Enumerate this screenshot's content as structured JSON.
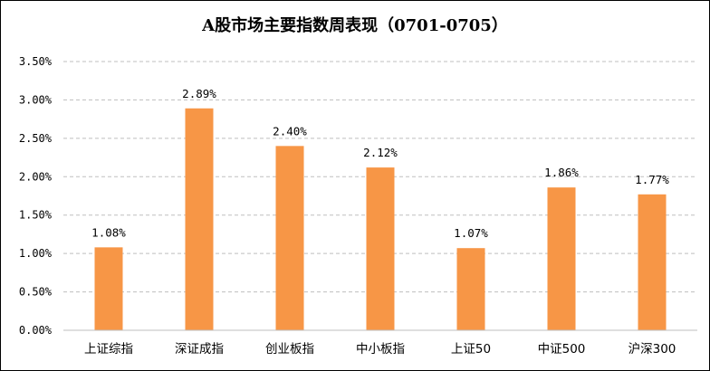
{
  "chart_data": {
    "type": "bar",
    "title": "A股市场主要指数周表现（0701-0705）",
    "categories": [
      "上证综指",
      "深证成指",
      "创业板指",
      "中小板指",
      "上证50",
      "中证500",
      "沪深300"
    ],
    "values": [
      1.08,
      2.89,
      2.4,
      2.12,
      1.07,
      1.86,
      1.77
    ],
    "data_labels": [
      "1.08%",
      "2.89%",
      "2.40%",
      "2.12%",
      "1.07%",
      "1.86%",
      "1.77%"
    ],
    "y_ticks": [
      "0.00%",
      "0.50%",
      "1.00%",
      "1.50%",
      "2.00%",
      "2.50%",
      "3.00%",
      "3.50%"
    ],
    "ylim": [
      0,
      3.5
    ],
    "y_step": 0.5,
    "xlabel": "",
    "ylabel": "",
    "grid": true,
    "legend": "none",
    "bar_color": "#F79646",
    "grid_color": "#BFBFBF"
  }
}
